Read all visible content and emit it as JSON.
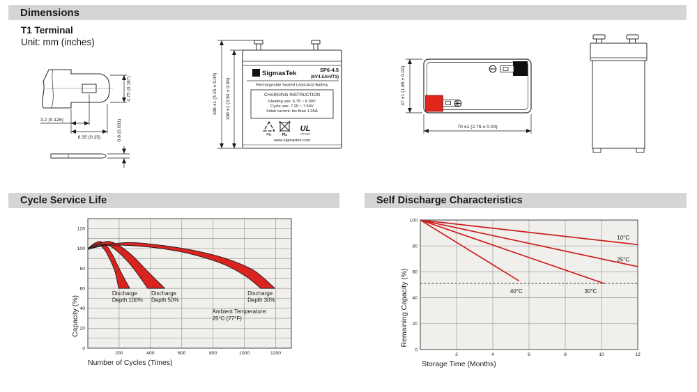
{
  "sections": {
    "dimensions": "Dimensions"
  },
  "dims": {
    "terminal_type": "T1 Terminal",
    "unit_note": "Unit: mm (inches)"
  },
  "terminal_drawing": {
    "dim_height": "4.75 (0.187)",
    "dim_hole": "3.2 (0.126)",
    "dim_width": "6.35 (0.25)",
    "dim_thickness": "0.8 (0.031)"
  },
  "front_view": {
    "dim_total_height": "108 ±1 (4.25 ± 0.04)",
    "dim_case_height": "100 ±1 (3.94 ± 0.04)",
    "brand_mark": "S",
    "brand": "SigmasTek",
    "model": "SP6-4.5",
    "spec": "(6V4.5AH/T1)",
    "subtitle": "Rechargeable Sealed Lead-Acid Battery",
    "charging_title": "CHARGING INSTRUCTION",
    "charging_lines": [
      "Floating use: 6.75 ~ 6.90V",
      "Cycle use: 7.20 ~ 7.50V",
      "Initial current: les than 1.35A"
    ],
    "pb_recycle": "Pb.",
    "pb_bin": "Pb.",
    "ul_text": "UL",
    "ul_code": "MH47829",
    "website": "www.sigmastek.com"
  },
  "top_view": {
    "dim_height": "47 ±1 (1.85 ± 0.04)",
    "dim_width": "70 ±1 (2.76 ± 0.04)"
  },
  "chart_data": [
    {
      "type": "area",
      "title": "Cycle Service Life",
      "xlabel": "Number of Cycles (Times)",
      "ylabel": "Capacity (%)",
      "xlim": [
        0,
        1300
      ],
      "ylim": [
        0,
        130
      ],
      "x_ticks": [
        200,
        400,
        600,
        800,
        1000,
        1200
      ],
      "y_ticks": [
        0,
        20,
        40,
        60,
        80,
        100,
        120
      ],
      "x_grid_step": 200,
      "y_grid_step": 10,
      "band_color": "#d8231f",
      "bands": [
        {
          "name": "Discharge Depth 100%",
          "upper": [
            [
              0,
              100
            ],
            [
              40,
              105
            ],
            [
              80,
              107
            ],
            [
              120,
              103
            ],
            [
              160,
              93
            ],
            [
              200,
              80
            ],
            [
              240,
              68
            ],
            [
              268,
              60
            ]
          ],
          "lower": [
            [
              0,
              99
            ],
            [
              35,
              103
            ],
            [
              70,
              104
            ],
            [
              110,
              98
            ],
            [
              150,
              86
            ],
            [
              175,
              76
            ],
            [
              197,
              60
            ]
          ]
        },
        {
          "name": "Discharge Depth 50%",
          "upper": [
            [
              0,
              100
            ],
            [
              70,
              105
            ],
            [
              140,
              107
            ],
            [
              210,
              102
            ],
            [
              290,
              92
            ],
            [
              370,
              79
            ],
            [
              440,
              68
            ],
            [
              492,
              60
            ]
          ],
          "lower": [
            [
              0,
              99
            ],
            [
              60,
              103
            ],
            [
              120,
              104
            ],
            [
              190,
              97
            ],
            [
              260,
              86
            ],
            [
              320,
              74
            ],
            [
              382,
              60
            ]
          ]
        },
        {
          "name": "Discharge Depth 30%",
          "upper": [
            [
              0,
              100
            ],
            [
              120,
              104
            ],
            [
              280,
              106
            ],
            [
              480,
              103
            ],
            [
              680,
              98
            ],
            [
              880,
              90
            ],
            [
              1060,
              78
            ],
            [
              1195,
              60
            ]
          ],
          "lower": [
            [
              0,
              99
            ],
            [
              110,
              103
            ],
            [
              270,
              103
            ],
            [
              470,
              100
            ],
            [
              670,
              94
            ],
            [
              870,
              84
            ],
            [
              1010,
              72
            ],
            [
              1105,
              60
            ]
          ]
        }
      ],
      "labels": [
        {
          "x": 155,
          "y": 53,
          "text": [
            "Discharge",
            "Depth 100%"
          ]
        },
        {
          "x": 405,
          "y": 53,
          "text": [
            "Discharge",
            "Depth 50%"
          ]
        },
        {
          "x": 1020,
          "y": 53,
          "text": [
            "Discharge",
            "Depth 30%"
          ]
        }
      ],
      "annotation": {
        "x": 795,
        "y": 35,
        "lines": [
          "Ambient Temperature:",
          "25°C (77°F)"
        ]
      }
    },
    {
      "type": "line",
      "title": "Self Discharge Characteristics",
      "xlabel": "Storage Time (Months)",
      "ylabel": "Remaining Capacity (%)",
      "xlim": [
        0,
        12
      ],
      "ylim": [
        0,
        100
      ],
      "x_ticks": [
        2,
        4,
        6,
        8,
        10,
        12
      ],
      "y_ticks": [
        0,
        20,
        40,
        60,
        80,
        100
      ],
      "x_grid_step": 2,
      "y_grid_step": 20,
      "line_color": "#cc1f1f",
      "dashed_line_y": 51,
      "series": [
        {
          "name": "10°C",
          "points": [
            [
              0,
              100
            ],
            [
              12,
              81
            ]
          ],
          "label_at": [
            11.2,
            85
          ]
        },
        {
          "name": "25°C",
          "points": [
            [
              0,
              100
            ],
            [
              12,
              64
            ]
          ],
          "label_at": [
            11.2,
            68
          ]
        },
        {
          "name": "30°C",
          "points": [
            [
              0,
              100
            ],
            [
              10.15,
              51
            ]
          ],
          "label_at": [
            9.4,
            43.5
          ]
        },
        {
          "name": "40°C",
          "points": [
            [
              0,
              100
            ],
            [
              5.45,
              53
            ]
          ],
          "label_at": [
            5.3,
            43.5
          ]
        }
      ]
    }
  ]
}
